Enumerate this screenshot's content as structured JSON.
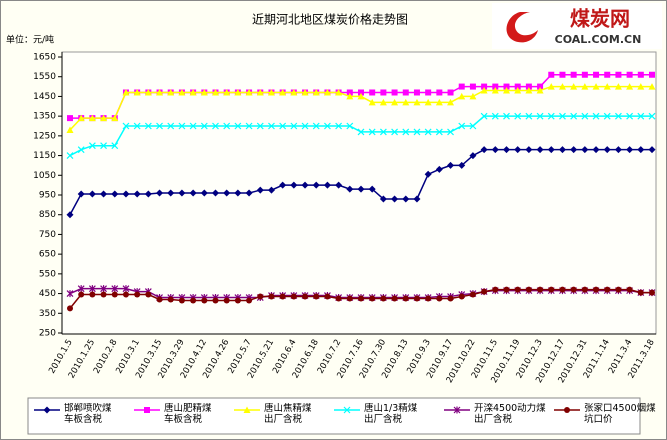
{
  "chart_data": {
    "type": "line",
    "title": "近期河北地区煤炭价格走势图",
    "unit_label": "单位：元/吨",
    "logo_name": "煤炭网",
    "logo_url": "COAL.COM.CN",
    "categories": [
      "2010.1.5",
      null,
      "2010.1.25",
      null,
      "2010.2.8",
      null,
      "2010.3.1",
      null,
      "2010.3.15",
      null,
      "2010.3.29",
      null,
      "2010.4.12",
      null,
      "2010.4.26",
      null,
      "2010.5.7",
      null,
      "2010.5.21",
      null,
      "2010.6.4",
      null,
      "2010.6.18",
      null,
      "2010.7.2",
      null,
      "2010.7.16",
      null,
      "2010.7.30",
      null,
      "2010.8.13",
      null,
      "2010.9.3",
      null,
      "2010.9.17",
      null,
      "2010.10.22",
      null,
      "2010.11.5",
      null,
      "2010.11.19",
      null,
      "2010.12.3",
      null,
      "2010.12.17",
      null,
      "2010.12.31",
      null,
      "2011.1.14",
      null,
      "2011.3.4",
      null,
      "2011.3.18"
    ],
    "ylim": [
      250,
      1650
    ],
    "yticks": [
      250,
      350,
      450,
      550,
      650,
      750,
      850,
      950,
      1050,
      1150,
      1250,
      1350,
      1450,
      1550,
      1650
    ],
    "grid": false,
    "legend": "bottom",
    "series": [
      {
        "name": "邯郸喷吹煤车板含税",
        "color": "#000080",
        "marker": "diamond",
        "values": [
          850,
          955,
          955,
          955,
          955,
          955,
          955,
          955,
          960,
          960,
          960,
          960,
          960,
          960,
          960,
          960,
          960,
          975,
          975,
          1000,
          1000,
          1000,
          1000,
          1000,
          1000,
          980,
          980,
          980,
          930,
          930,
          930,
          930,
          1055,
          1080,
          1100,
          1100,
          1150,
          1180,
          1180,
          1180,
          1180,
          1180,
          1180,
          1180,
          1180,
          1180,
          1180,
          1180,
          1180,
          1180,
          1180,
          1180,
          1180
        ]
      },
      {
        "name": "唐山肥精煤车板含税",
        "color": "#ff00ff",
        "marker": "square",
        "values": [
          1340,
          1340,
          1340,
          1340,
          1340,
          1470,
          1470,
          1470,
          1470,
          1470,
          1470,
          1470,
          1470,
          1470,
          1470,
          1470,
          1470,
          1470,
          1470,
          1470,
          1470,
          1470,
          1470,
          1470,
          1470,
          1470,
          1470,
          1470,
          1470,
          1470,
          1470,
          1470,
          1470,
          1470,
          1470,
          1500,
          1500,
          1500,
          1500,
          1500,
          1500,
          1500,
          1500,
          1560,
          1560,
          1560,
          1560,
          1560,
          1560,
          1560,
          1560,
          1560,
          1560
        ]
      },
      {
        "name": "唐山焦精煤出厂含税",
        "color": "#ffff00",
        "marker": "triangle",
        "values": [
          1280,
          1340,
          1340,
          1340,
          1340,
          1470,
          1470,
          1470,
          1470,
          1470,
          1470,
          1470,
          1470,
          1470,
          1470,
          1470,
          1470,
          1470,
          1470,
          1470,
          1470,
          1470,
          1470,
          1470,
          1470,
          1450,
          1450,
          1420,
          1420,
          1420,
          1420,
          1420,
          1420,
          1420,
          1420,
          1450,
          1450,
          1480,
          1480,
          1480,
          1480,
          1480,
          1480,
          1500,
          1500,
          1500,
          1500,
          1500,
          1500,
          1500,
          1500,
          1500,
          1500
        ]
      },
      {
        "name": "唐山1/3精煤出厂含税",
        "color": "#00ffff",
        "marker": "x",
        "values": [
          1150,
          1180,
          1200,
          1200,
          1200,
          1300,
          1300,
          1300,
          1300,
          1300,
          1300,
          1300,
          1300,
          1300,
          1300,
          1300,
          1300,
          1300,
          1300,
          1300,
          1300,
          1300,
          1300,
          1300,
          1300,
          1300,
          1270,
          1270,
          1270,
          1270,
          1270,
          1270,
          1270,
          1270,
          1270,
          1300,
          1300,
          1350,
          1350,
          1350,
          1350,
          1350,
          1350,
          1350,
          1350,
          1350,
          1350,
          1350,
          1350,
          1350,
          1350,
          1350,
          1350
        ]
      },
      {
        "name": "开滦4500动力煤出厂含税",
        "color": "#800080",
        "marker": "star",
        "values": [
          450,
          475,
          475,
          475,
          475,
          475,
          460,
          460,
          430,
          430,
          430,
          430,
          430,
          430,
          430,
          430,
          430,
          430,
          440,
          440,
          440,
          440,
          440,
          440,
          430,
          430,
          430,
          430,
          430,
          430,
          430,
          430,
          430,
          435,
          435,
          445,
          450,
          460,
          465,
          465,
          465,
          465,
          465,
          465,
          465,
          465,
          465,
          465,
          465,
          465,
          465,
          455,
          455
        ]
      },
      {
        "name": "张家口4500烟煤坑口价",
        "color": "#800000",
        "marker": "circle",
        "values": [
          375,
          445,
          445,
          445,
          445,
          445,
          445,
          445,
          420,
          420,
          415,
          415,
          415,
          415,
          415,
          415,
          415,
          435,
          435,
          435,
          435,
          435,
          435,
          435,
          425,
          425,
          425,
          425,
          425,
          425,
          425,
          425,
          425,
          425,
          425,
          435,
          445,
          460,
          470,
          470,
          470,
          470,
          470,
          470,
          470,
          470,
          470,
          470,
          470,
          470,
          470,
          455,
          455
        ]
      }
    ]
  }
}
